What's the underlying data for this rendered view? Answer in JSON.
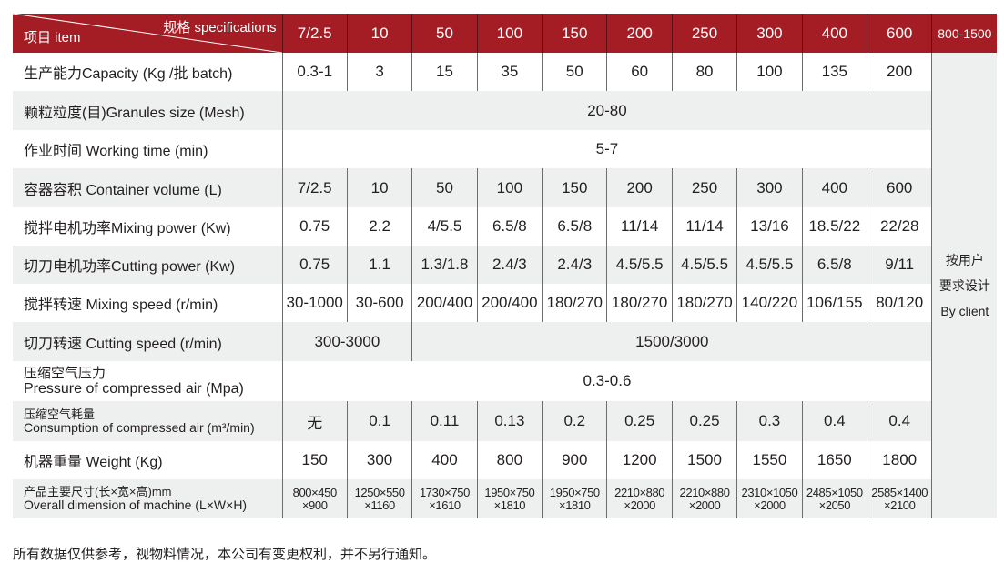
{
  "header": {
    "spec_label": "规格 specifications",
    "item_label": "项目 item",
    "models": [
      "7/2.5",
      "10",
      "50",
      "100",
      "150",
      "200",
      "250",
      "300",
      "400",
      "600"
    ],
    "custom_model": "800-1500"
  },
  "custom_column": [
    "按用户",
    "要求设计",
    "By client"
  ],
  "rows": [
    {
      "label": "生产能力Capacity (Kg /批 batch)",
      "cells": [
        [
          "0.3-1",
          1
        ],
        [
          "3",
          1
        ],
        [
          "15",
          1
        ],
        [
          "35",
          1
        ],
        [
          "50",
          1
        ],
        [
          "60",
          1
        ],
        [
          "80",
          1
        ],
        [
          "100",
          1
        ],
        [
          "135",
          1
        ],
        [
          "200",
          1
        ]
      ]
    },
    {
      "label": "颗粒粒度(目)Granules size (Mesh)",
      "cells": [
        [
          "20-80",
          10
        ]
      ]
    },
    {
      "label": "作业时间  Working time (min)",
      "cells": [
        [
          "5-7",
          10
        ]
      ]
    },
    {
      "label": "容器容积 Container volume (L)",
      "cells": [
        [
          "7/2.5",
          1
        ],
        [
          "10",
          1
        ],
        [
          "50",
          1
        ],
        [
          "100",
          1
        ],
        [
          "150",
          1
        ],
        [
          "200",
          1
        ],
        [
          "250",
          1
        ],
        [
          "300",
          1
        ],
        [
          "400",
          1
        ],
        [
          "600",
          1
        ]
      ]
    },
    {
      "label": "搅拌电机功率Mixing power (Kw)",
      "cells": [
        [
          "0.75",
          1
        ],
        [
          "2.2",
          1
        ],
        [
          "4/5.5",
          1
        ],
        [
          "6.5/8",
          1
        ],
        [
          "6.5/8",
          1
        ],
        [
          "11/14",
          1
        ],
        [
          "11/14",
          1
        ],
        [
          "13/16",
          1
        ],
        [
          "18.5/22",
          1
        ],
        [
          "22/28",
          1
        ]
      ]
    },
    {
      "label": "切刀电机功率Cutting power (Kw)",
      "cells": [
        [
          "0.75",
          1
        ],
        [
          "1.1",
          1
        ],
        [
          "1.3/1.8",
          1
        ],
        [
          "2.4/3",
          1
        ],
        [
          "2.4/3",
          1
        ],
        [
          "4.5/5.5",
          1
        ],
        [
          "4.5/5.5",
          1
        ],
        [
          "4.5/5.5",
          1
        ],
        [
          "6.5/8",
          1
        ],
        [
          "9/11",
          1
        ]
      ]
    },
    {
      "label": "搅拌转速 Mixing speed (r/min)",
      "cells": [
        [
          "30-1000",
          1
        ],
        [
          "30-600",
          1
        ],
        [
          "200/400",
          1
        ],
        [
          "200/400",
          1
        ],
        [
          "180/270",
          1
        ],
        [
          "180/270",
          1
        ],
        [
          "180/270",
          1
        ],
        [
          "140/220",
          1
        ],
        [
          "106/155",
          1
        ],
        [
          "80/120",
          1
        ]
      ]
    },
    {
      "label": "切刀转速 Cutting speed (r/min)",
      "cells": [
        [
          "300-3000",
          2
        ],
        [
          "1500/3000",
          8
        ]
      ]
    },
    {
      "label_cn": "压缩空气压力",
      "label_en": "Pressure of compressed air (Mpa)",
      "cells": [
        [
          "0.3-0.6",
          10
        ]
      ]
    },
    {
      "label_cn": "压缩空气耗量",
      "label_en": "Consumption of compressed air (m³/min)",
      "small": true,
      "cells": [
        [
          "无",
          1
        ],
        [
          "0.1",
          1
        ],
        [
          "0.11",
          1
        ],
        [
          "0.13",
          1
        ],
        [
          "0.2",
          1
        ],
        [
          "0.25",
          1
        ],
        [
          "0.25",
          1
        ],
        [
          "0.3",
          1
        ],
        [
          "0.4",
          1
        ],
        [
          "0.4",
          1
        ]
      ]
    },
    {
      "label": "机器重量 Weight (Kg)",
      "cells": [
        [
          "150",
          1
        ],
        [
          "300",
          1
        ],
        [
          "400",
          1
        ],
        [
          "800",
          1
        ],
        [
          "900",
          1
        ],
        [
          "1200",
          1
        ],
        [
          "1500",
          1
        ],
        [
          "1550",
          1
        ],
        [
          "1650",
          1
        ],
        [
          "1800",
          1
        ]
      ]
    },
    {
      "label_cn": "产品主要尺寸(长×宽×高)mm",
      "label_en": "Overall dimension of machine (L×W×H)",
      "small": true,
      "dim": true,
      "cells": [
        [
          "800×450|×900",
          1
        ],
        [
          "1250×550|×1160",
          1
        ],
        [
          "1730×750|×1610",
          1
        ],
        [
          "1950×750|×1810",
          1
        ],
        [
          "1950×750|×1810",
          1
        ],
        [
          "2210×880|×2000",
          1
        ],
        [
          "2210×880|×2000",
          1
        ],
        [
          "2310×1050|×2000",
          1
        ],
        [
          "2485×1050|×2050",
          1
        ],
        [
          "2585×1400|×2100",
          1
        ]
      ]
    }
  ],
  "footnote": "所有数据仅供参考，视物料情况，本公司有变更权利，并不另行通知。",
  "colors": {
    "header_bg": "#a51d24",
    "stripe": "#eeefef"
  }
}
